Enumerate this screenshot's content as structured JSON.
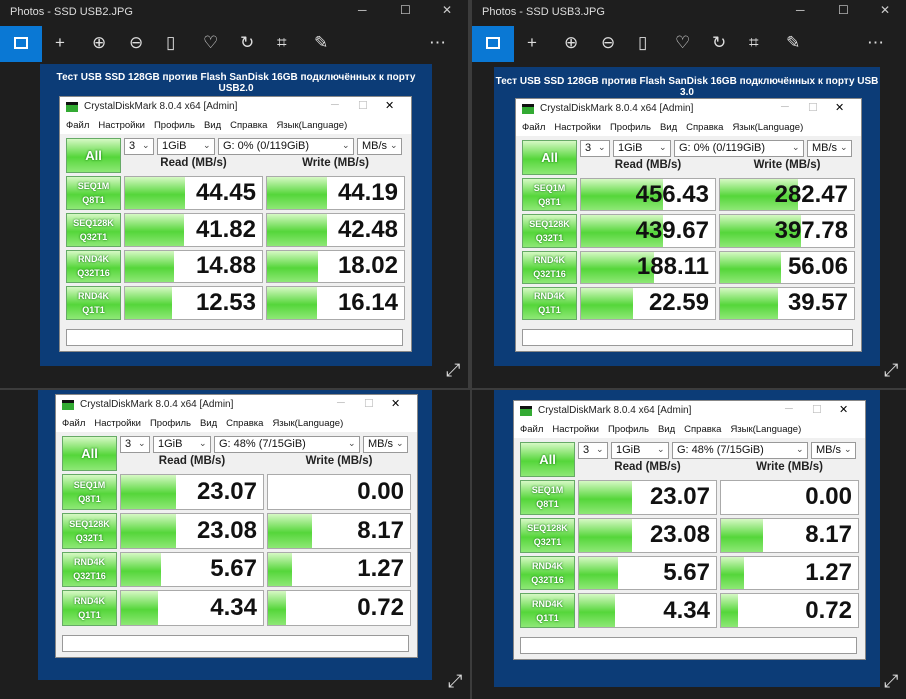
{
  "windows": [
    {
      "title": "Photos - SSD USB2.JPG",
      "caption": "Тест USB SSD 128GB против Flash SanDisk 16GB подключённых к порту USB2.0",
      "cdm": {
        "title": "CrystalDiskMark 8.0.4 x64 [Admin]",
        "menu": [
          "Файл",
          "Настройки",
          "Профиль",
          "Вид",
          "Справка",
          "Язык(Language)"
        ],
        "all": "All",
        "count": "3",
        "size": "1GiB",
        "drive": "G: 0% (0/119GiB)",
        "unit": "MB/s",
        "read_header": "Read (MB/s)",
        "write_header": "Write (MB/s)",
        "tests": [
          [
            "SEQ1M",
            "Q8T1"
          ],
          [
            "SEQ128K",
            "Q32T1"
          ],
          [
            "RND4K",
            "Q32T16"
          ],
          [
            "RND4K",
            "Q1T1"
          ]
        ],
        "read": [
          44.45,
          41.82,
          14.88,
          12.53
        ],
        "write": [
          44.19,
          42.48,
          18.02,
          16.14
        ]
      }
    },
    {
      "title": "Photos - SSD USB3.JPG",
      "caption": "Тест USB SSD 128GB против Flash SanDisk 16GB подключённых к порту USB 3.0",
      "cdm": {
        "title": "CrystalDiskMark 8.0.4 x64 [Admin]",
        "menu": [
          "Файл",
          "Настройки",
          "Профиль",
          "Вид",
          "Справка",
          "Язык(Language)"
        ],
        "all": "All",
        "count": "3",
        "size": "1GiB",
        "drive": "G: 0% (0/119GiB)",
        "unit": "MB/s",
        "read_header": "Read (MB/s)",
        "write_header": "Write (MB/s)",
        "tests": [
          [
            "SEQ1M",
            "Q8T1"
          ],
          [
            "SEQ128K",
            "Q32T1"
          ],
          [
            "RND4K",
            "Q32T16"
          ],
          [
            "RND4K",
            "Q1T1"
          ]
        ],
        "read": [
          456.43,
          439.67,
          188.11,
          22.59
        ],
        "write": [
          282.47,
          397.78,
          56.06,
          39.57
        ]
      }
    },
    {
      "cdm": {
        "title": "CrystalDiskMark 8.0.4 x64 [Admin]",
        "menu": [
          "Файл",
          "Настройки",
          "Профиль",
          "Вид",
          "Справка",
          "Язык(Language)"
        ],
        "all": "All",
        "count": "3",
        "size": "1GiB",
        "drive": "G: 48% (7/15GiB)",
        "unit": "MB/s",
        "read_header": "Read (MB/s)",
        "write_header": "Write (MB/s)",
        "tests": [
          [
            "SEQ1M",
            "Q8T1"
          ],
          [
            "SEQ128K",
            "Q32T1"
          ],
          [
            "RND4K",
            "Q32T16"
          ],
          [
            "RND4K",
            "Q1T1"
          ]
        ],
        "read": [
          23.07,
          23.08,
          5.67,
          4.34
        ],
        "write": [
          0,
          8.17,
          1.27,
          0.72
        ],
        "write_labels": [
          "0.00",
          "8.17",
          "1.27",
          "0.72"
        ]
      }
    },
    {
      "cdm": {
        "title": "CrystalDiskMark 8.0.4 x64 [Admin]",
        "menu": [
          "Файл",
          "Настройки",
          "Профиль",
          "Вид",
          "Справка",
          "Язык(Language)"
        ],
        "all": "All",
        "count": "3",
        "size": "1GiB",
        "drive": "G: 48% (7/15GiB)",
        "unit": "MB/s",
        "read_header": "Read (MB/s)",
        "write_header": "Write (MB/s)",
        "tests": [
          [
            "SEQ1M",
            "Q8T1"
          ],
          [
            "SEQ128K",
            "Q32T1"
          ],
          [
            "RND4K",
            "Q32T16"
          ],
          [
            "RND4K",
            "Q1T1"
          ]
        ],
        "read": [
          23.07,
          23.08,
          5.67,
          4.34
        ],
        "write": [
          0,
          8.17,
          1.27,
          0.72
        ],
        "write_labels": [
          "0.00",
          "8.17",
          "1.27",
          "0.72"
        ]
      }
    }
  ]
}
